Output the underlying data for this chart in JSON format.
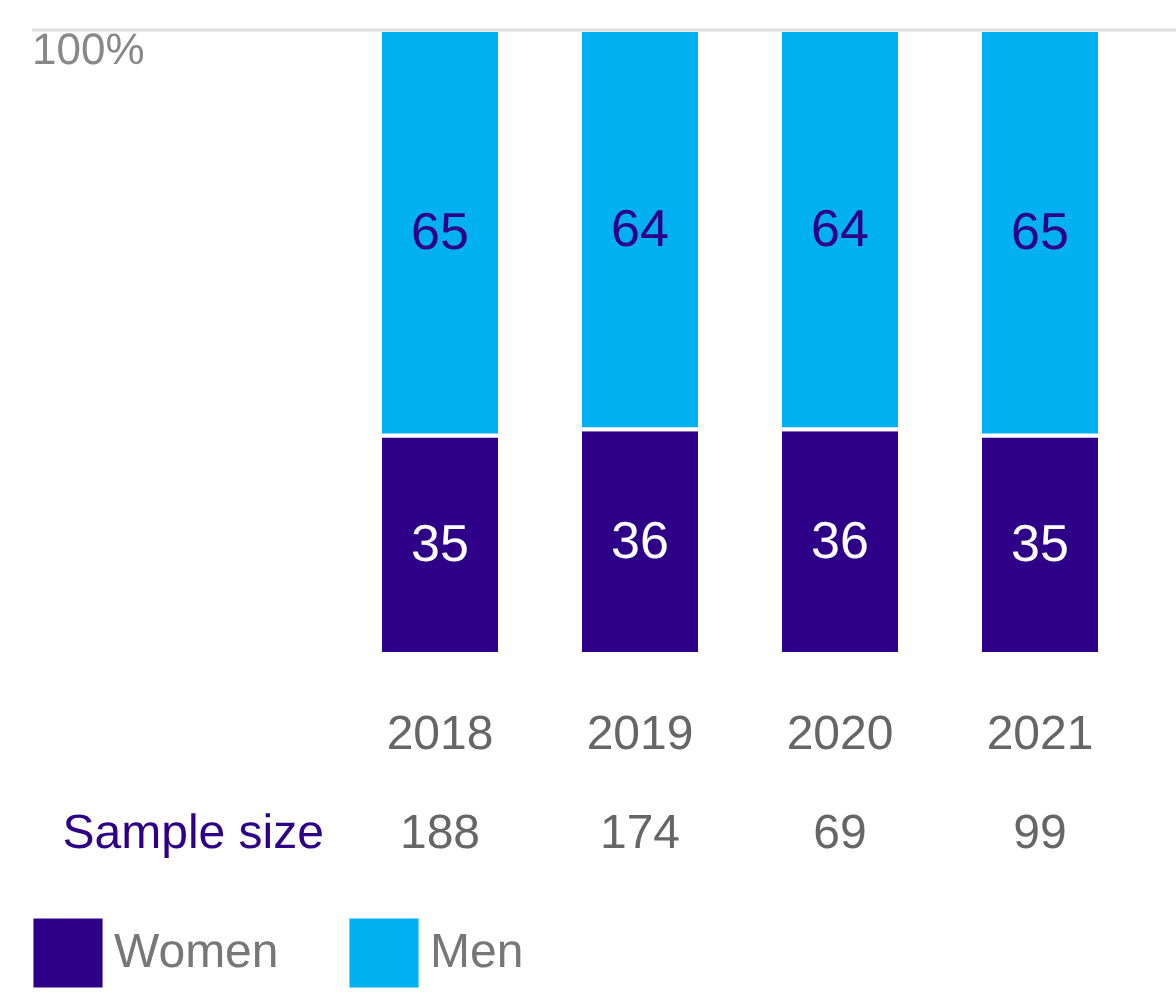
{
  "chart_data": {
    "type": "bar",
    "stacked": true,
    "categories": [
      "2018",
      "2019",
      "2020",
      "2021"
    ],
    "series": [
      {
        "name": "Women",
        "color": "#2e0088",
        "values": [
          35,
          36,
          36,
          35
        ]
      },
      {
        "name": "Men",
        "color": "#00b0f0",
        "values": [
          65,
          64,
          64,
          65
        ]
      }
    ],
    "ylim": [
      0,
      100
    ],
    "ref_lines": [
      {
        "axis": "y",
        "value": 100,
        "label": "100%",
        "color": "#dddddd"
      }
    ],
    "data_labels": true,
    "legend": "bottom left",
    "annotations": [
      "Sample size",
      "188",
      "174",
      "69",
      "99"
    ]
  }
}
